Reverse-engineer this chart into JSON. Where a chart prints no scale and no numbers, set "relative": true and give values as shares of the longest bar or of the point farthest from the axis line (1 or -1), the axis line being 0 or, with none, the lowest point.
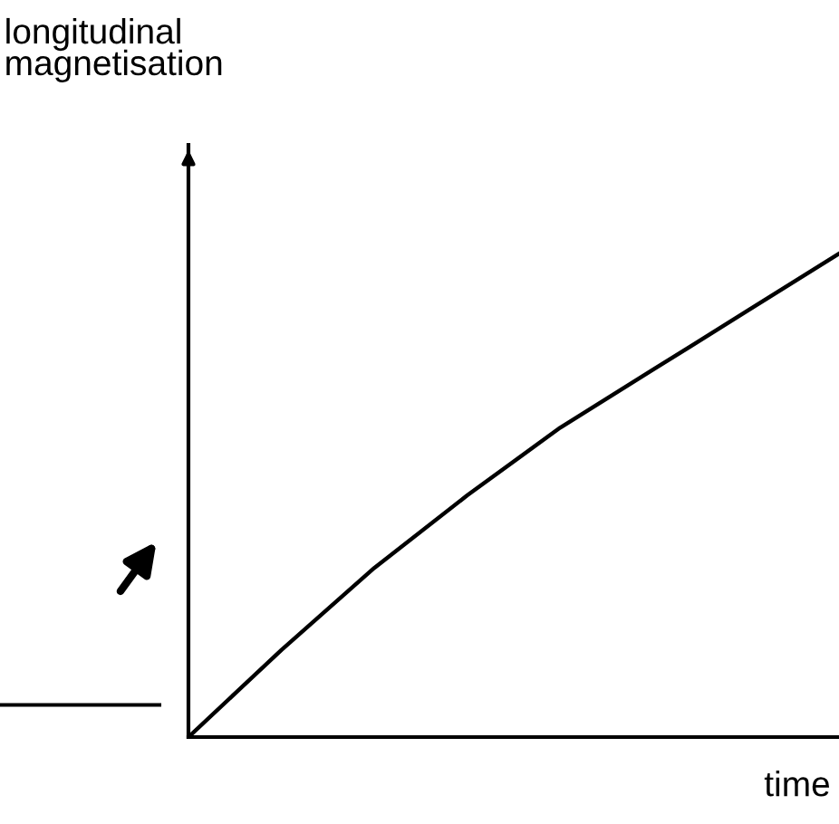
{
  "chart_data": {
    "type": "line",
    "relative": true,
    "xlabel": "time",
    "ylabel": "longitudinal\nmagnetisation",
    "categories": [
      null,
      null,
      null,
      null,
      null,
      null,
      null,
      null
    ],
    "series": [
      {
        "color": "#000000",
        "values": [
          0,
          0.18,
          0.35,
          0.5,
          0.64,
          0.76,
          0.88,
          1.0
        ]
      }
    ],
    "grid": false,
    "legend": false,
    "marker": "none",
    "line_style": "solid"
  }
}
